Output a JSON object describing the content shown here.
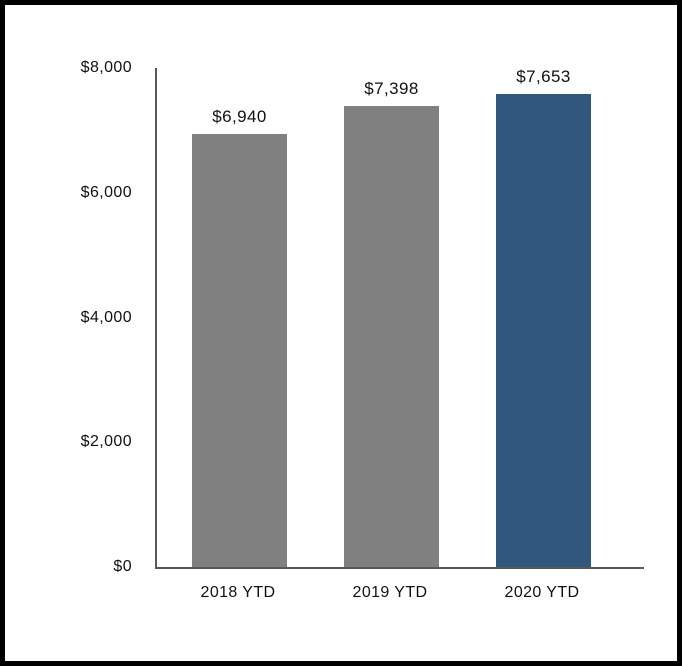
{
  "chart_data": {
    "type": "bar",
    "title": "",
    "xlabel": "",
    "ylabel": "",
    "categories": [
      "2018 YTD",
      "2019 YTD",
      "2020 YTD"
    ],
    "values": [
      6940,
      7398,
      7653
    ],
    "value_labels": [
      "$6,940",
      "$7,398",
      "$7,653"
    ],
    "ylim": [
      0,
      8000
    ],
    "y_ticks": [
      {
        "value": 0,
        "label": "$0"
      },
      {
        "value": 2000,
        "label": "$2,000"
      },
      {
        "value": 4000,
        "label": "$4,000"
      },
      {
        "value": 6000,
        "label": "$6,000"
      },
      {
        "value": 8000,
        "label": "$8,000"
      }
    ],
    "grid": false,
    "legend": "none",
    "bar_colors": [
      "#808080",
      "#808080",
      "#2F587C"
    ],
    "axis_color": "#595959",
    "text_color": "#111111",
    "background_color": "#FFFFFF",
    "frame_border_color": "#000000"
  }
}
